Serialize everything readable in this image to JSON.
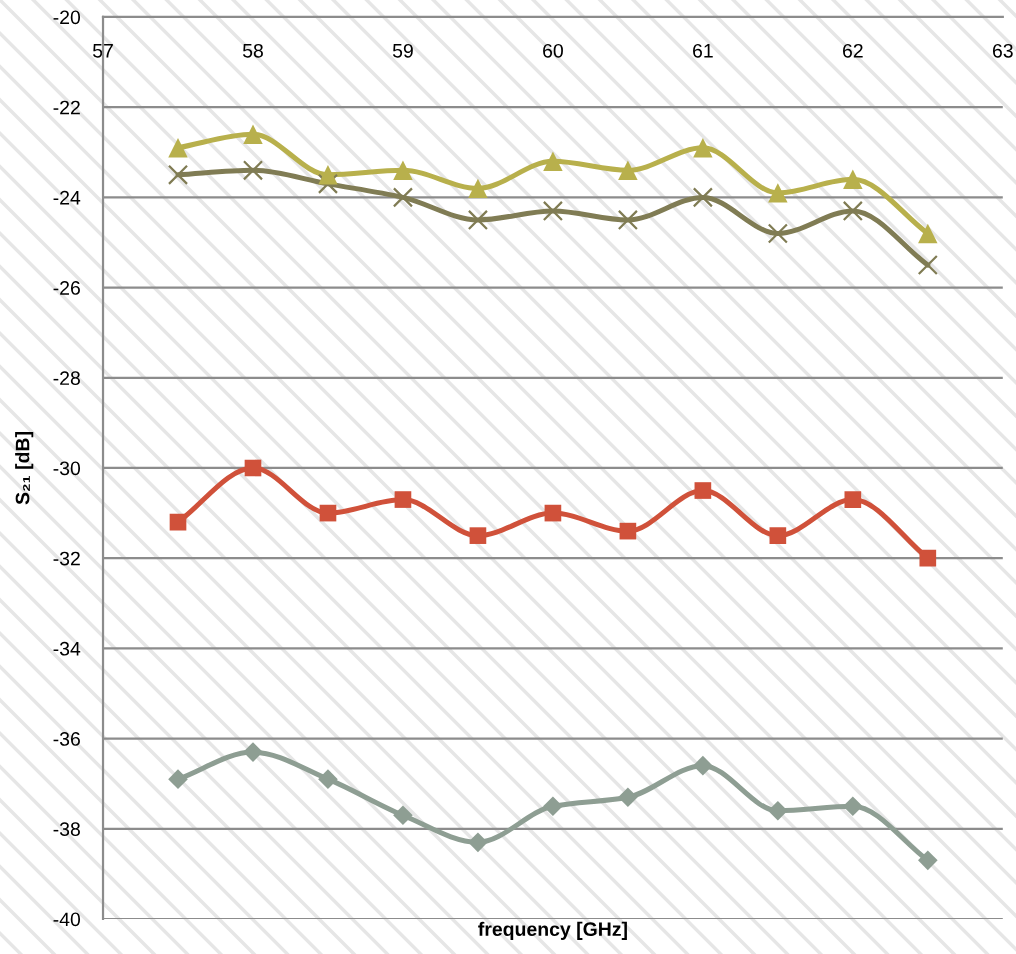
{
  "chart_data": {
    "type": "line",
    "xlabel": "frequency [GHz]",
    "ylabel": "S₂₁ [dB]",
    "x": [
      57.5,
      58,
      58.5,
      59,
      59.5,
      60,
      60.5,
      61,
      61.5,
      62,
      62.5
    ],
    "xlim": [
      57,
      63
    ],
    "xticks": [
      57,
      58,
      59,
      60,
      61,
      62,
      63
    ],
    "ylim": [
      -40,
      -20
    ],
    "yticks": [
      -40,
      -38,
      -36,
      -34,
      -32,
      -30,
      -28,
      -26,
      -24,
      -22,
      -20
    ],
    "grid": "y",
    "line_style": "solid",
    "series": [
      {
        "color": "#d0513a",
        "marker": "square",
        "values": [
          -31.2,
          -30.0,
          -31.0,
          -30.7,
          -31.5,
          -31.0,
          -31.4,
          -30.5,
          -31.5,
          -30.7,
          -32.0
        ]
      },
      {
        "color": "#8e9e93",
        "marker": "diamond",
        "values": [
          -36.9,
          -36.3,
          -36.9,
          -37.7,
          -38.3,
          -37.5,
          -37.3,
          -36.6,
          -37.6,
          -37.5,
          -38.7
        ]
      },
      {
        "color": "#807c54",
        "marker": "cross",
        "values": [
          -23.5,
          -23.4,
          -23.7,
          -24.0,
          -24.5,
          -24.3,
          -24.5,
          -24.0,
          -24.8,
          -24.3,
          -25.5
        ]
      },
      {
        "color": "#b8b04c",
        "marker": "triangle",
        "values": [
          -22.9,
          -22.6,
          -23.5,
          -23.4,
          -23.8,
          -23.2,
          -23.4,
          -22.9,
          -23.9,
          -23.6,
          -24.8
        ]
      }
    ]
  }
}
